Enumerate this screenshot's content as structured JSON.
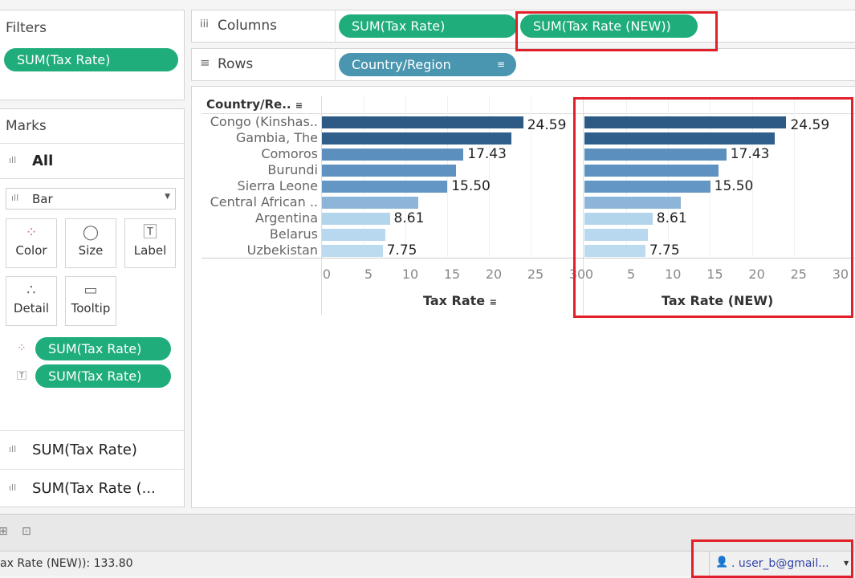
{
  "filters": {
    "title": "Filters",
    "pill": "SUM(Tax Rate)"
  },
  "marks": {
    "title": "Marks",
    "all": "All",
    "mark_type": "Bar",
    "buttons": [
      {
        "label": "Color",
        "icon": "color-dots-icon"
      },
      {
        "label": "Size",
        "icon": "size-icon"
      },
      {
        "label": "Label",
        "icon": "label-icon"
      },
      {
        "label": "Detail",
        "icon": "detail-icon"
      },
      {
        "label": "Tooltip",
        "icon": "tooltip-icon"
      }
    ],
    "fields": [
      {
        "icon": "color-dots-icon",
        "label": "SUM(Tax Rate)"
      },
      {
        "icon": "label-icon",
        "label": "SUM(Tax Rate)"
      }
    ],
    "cards": [
      "SUM(Tax Rate)",
      "SUM(Tax Rate (..."
    ]
  },
  "shelves": {
    "columns_label": "Columns",
    "rows_label": "Rows",
    "columns": [
      "SUM(Tax Rate)",
      "SUM(Tax Rate (NEW))"
    ],
    "rows": [
      "Country/Region"
    ]
  },
  "status": {
    "text": "ax Rate (NEW)): 133.80",
    "user": ". user_b@gmail..."
  },
  "colors": {
    "pill_green": "#1fad7c",
    "pill_blue": "#4a96b0",
    "highlight": "#e0202a"
  },
  "chart_data": [
    {
      "type": "bar",
      "orientation": "horizontal",
      "row_header": "Country/Re..",
      "xlabel": "Tax Rate",
      "xlim": [
        0,
        30
      ],
      "xticks": [
        0,
        5,
        10,
        15,
        20,
        25,
        30
      ],
      "categories": [
        "Congo (Kinshas..",
        "Gambia, The",
        "Comoros",
        "Burundi",
        "Sierra Leone",
        "Central African ..",
        "Argentina",
        "Belarus",
        "Uzbekistan"
      ],
      "values": [
        24.59,
        23.2,
        17.43,
        16.5,
        15.5,
        12.0,
        8.61,
        8.1,
        7.75
      ],
      "labels": [
        "24.59",
        "",
        "17.43",
        "",
        "15.50",
        "",
        "8.61",
        "",
        "7.75"
      ]
    },
    {
      "type": "bar",
      "orientation": "horizontal",
      "xlabel": "Tax Rate (NEW)",
      "xlim": [
        0,
        30
      ],
      "xticks": [
        0,
        5,
        10,
        15,
        20,
        25,
        30
      ],
      "values": [
        24.59,
        23.2,
        17.43,
        16.5,
        15.5,
        12.0,
        8.61,
        8.1,
        7.75
      ],
      "labels": [
        "24.59",
        "",
        "17.43",
        "",
        "15.50",
        "",
        "8.61",
        "",
        "7.75"
      ]
    }
  ]
}
